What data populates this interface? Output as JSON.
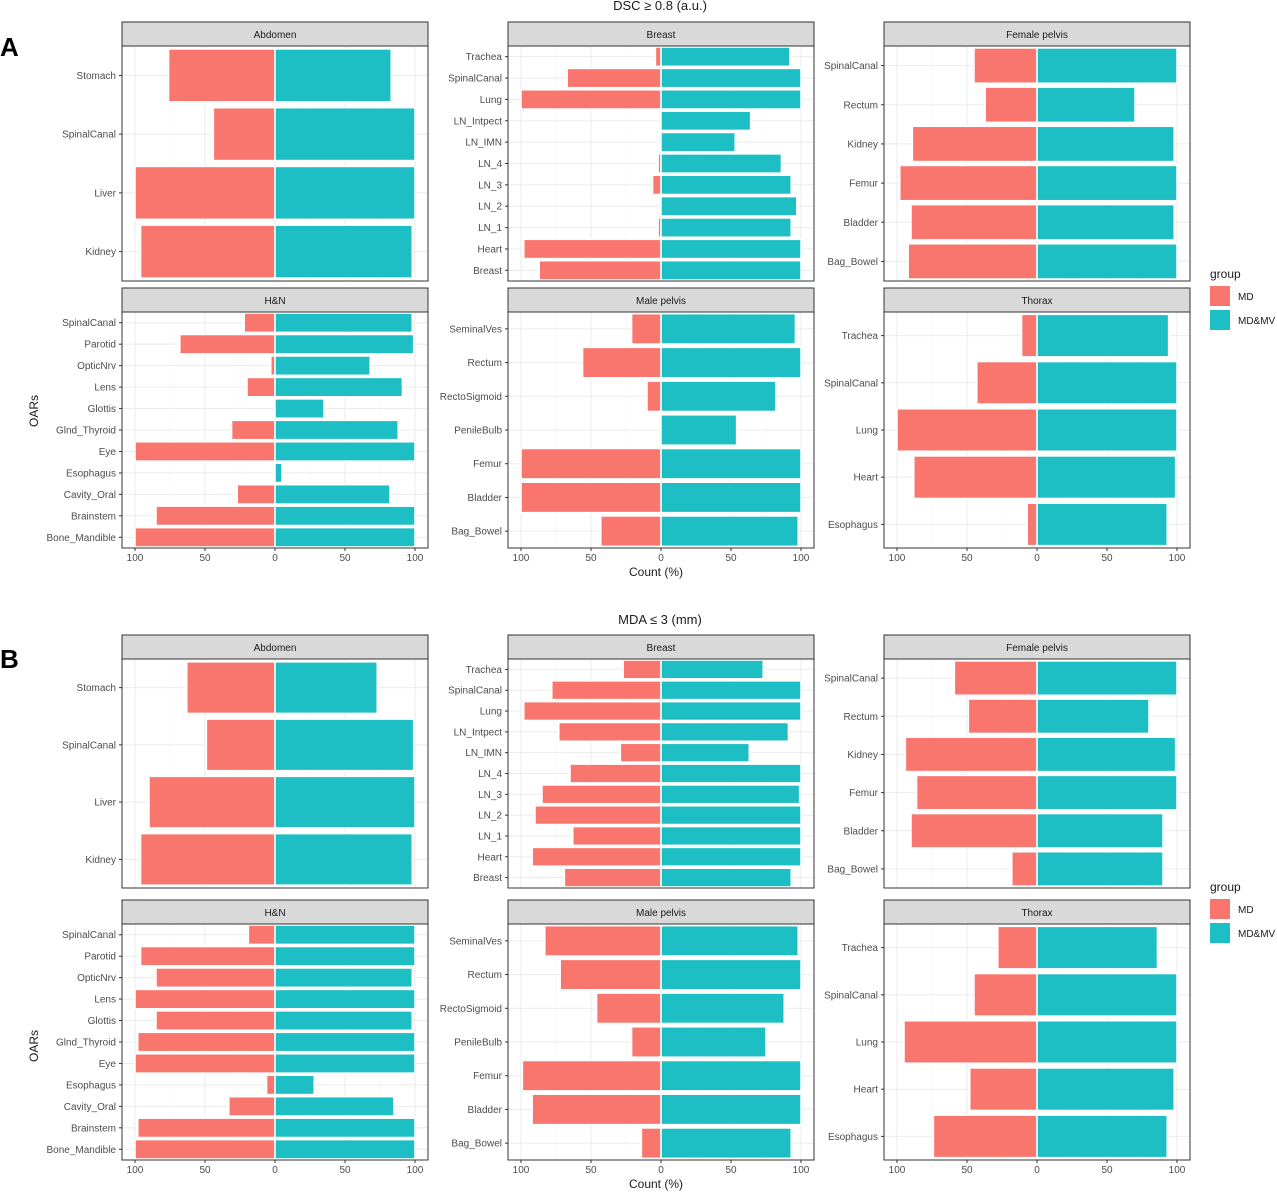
{
  "colors": {
    "MD": "#f8766d",
    "MD&MV": "#1dbfc4",
    "strip_bg": "#d9d9d9",
    "grid": "#ebebeb",
    "frame": "#333333"
  },
  "chart_data": [
    {
      "letter": "A",
      "title": "DSC ≥ 0.8 (a.u.)",
      "type": "bar",
      "orientation": "horizontal-mirrored",
      "xlabel": "Count (%)",
      "ylabel": "OARs",
      "xlim": [
        -100,
        100
      ],
      "xticks": [
        -100,
        -50,
        0,
        50,
        100
      ],
      "xtick_labels": [
        "100",
        "50",
        "0",
        "50",
        "100"
      ],
      "legend": {
        "title": "group",
        "position": "right",
        "entries": [
          "MD",
          "MD&MV"
        ]
      },
      "panels": [
        {
          "name": "Abdomen",
          "categories": [
            "Stomach",
            "SpinalCanal",
            "Liver",
            "Kidney"
          ],
          "series": [
            {
              "name": "MD",
              "values": [
                76,
                44,
                100,
                96
              ]
            },
            {
              "name": "MD&MV",
              "values": [
                83,
                100,
                100,
                98
              ]
            }
          ]
        },
        {
          "name": "Breast",
          "categories": [
            "Trachea",
            "SpinalCanal",
            "Lung",
            "LN_Intpect",
            "LN_IMN",
            "LN_4",
            "LN_3",
            "LN_2",
            "LN_1",
            "Heart",
            "Breast"
          ],
          "series": [
            {
              "name": "MD",
              "values": [
                4,
                67,
                100,
                0,
                0,
                2,
                6,
                1,
                2,
                98,
                87
              ]
            },
            {
              "name": "MD&MV",
              "values": [
                92,
                100,
                100,
                64,
                53,
                86,
                93,
                97,
                93,
                100,
                100
              ]
            }
          ]
        },
        {
          "name": "Female pelvis",
          "categories": [
            "SpinalCanal",
            "Rectum",
            "Kidney",
            "Femur",
            "Bladder",
            "Bag_Bowel"
          ],
          "series": [
            {
              "name": "MD",
              "values": [
                45,
                37,
                89,
                98,
                90,
                92
              ]
            },
            {
              "name": "MD&MV",
              "values": [
                100,
                70,
                98,
                100,
                98,
                100
              ]
            }
          ]
        },
        {
          "name": "H&N",
          "categories": [
            "SpinalCanal",
            "Parotid",
            "OpticNrv",
            "Lens",
            "Glottis",
            "Glnd_Thyroid",
            "Eye",
            "Esophagus",
            "Cavity_Oral",
            "Brainstem",
            "Bone_Mandible"
          ],
          "series": [
            {
              "name": "MD",
              "values": [
                22,
                68,
                3,
                20,
                0,
                31,
                100,
                0,
                27,
                85,
                100
              ]
            },
            {
              "name": "MD&MV",
              "values": [
                98,
                99,
                68,
                91,
                35,
                88,
                100,
                5,
                82,
                100,
                100
              ]
            }
          ]
        },
        {
          "name": "Male pelvis",
          "categories": [
            "SeminalVes",
            "Rectum",
            "RectoSigmoid",
            "PenileBulb",
            "Femur",
            "Bladder",
            "Bag_Bowel"
          ],
          "series": [
            {
              "name": "MD",
              "values": [
                21,
                56,
                10,
                0,
                100,
                100,
                43
              ]
            },
            {
              "name": "MD&MV",
              "values": [
                96,
                100,
                82,
                54,
                100,
                100,
                98
              ]
            }
          ]
        },
        {
          "name": "Thorax",
          "categories": [
            "Trachea",
            "SpinalCanal",
            "Lung",
            "Heart",
            "Esophagus"
          ],
          "series": [
            {
              "name": "MD",
              "values": [
                11,
                43,
                100,
                88,
                7
              ]
            },
            {
              "name": "MD&MV",
              "values": [
                94,
                100,
                100,
                99,
                93
              ]
            }
          ]
        }
      ]
    },
    {
      "letter": "B",
      "title": "MDA ≤ 3 (mm)",
      "type": "bar",
      "orientation": "horizontal-mirrored",
      "xlabel": "Count (%)",
      "ylabel": "OARs",
      "xlim": [
        -100,
        100
      ],
      "xticks": [
        -100,
        -50,
        0,
        50,
        100
      ],
      "xtick_labels": [
        "100",
        "50",
        "0",
        "50",
        "100"
      ],
      "legend": {
        "title": "group",
        "position": "right",
        "entries": [
          "MD",
          "MD&MV"
        ]
      },
      "panels": [
        {
          "name": "Abdomen",
          "categories": [
            "Stomach",
            "SpinalCanal",
            "Liver",
            "Kidney"
          ],
          "series": [
            {
              "name": "MD",
              "values": [
                63,
                49,
                90,
                96
              ]
            },
            {
              "name": "MD&MV",
              "values": [
                73,
                99,
                100,
                98
              ]
            }
          ]
        },
        {
          "name": "Breast",
          "categories": [
            "Trachea",
            "SpinalCanal",
            "Lung",
            "LN_Intpect",
            "LN_IMN",
            "LN_4",
            "LN_3",
            "LN_2",
            "LN_1",
            "Heart",
            "Breast"
          ],
          "series": [
            {
              "name": "MD",
              "values": [
                27,
                78,
                98,
                73,
                29,
                65,
                85,
                90,
                63,
                92,
                69
              ]
            },
            {
              "name": "MD&MV",
              "values": [
                73,
                100,
                100,
                91,
                63,
                100,
                99,
                100,
                100,
                100,
                93
              ]
            }
          ]
        },
        {
          "name": "Female pelvis",
          "categories": [
            "SpinalCanal",
            "Rectum",
            "Kidney",
            "Femur",
            "Bladder",
            "Bag_Bowel"
          ],
          "series": [
            {
              "name": "MD",
              "values": [
                59,
                49,
                94,
                86,
                90,
                18
              ]
            },
            {
              "name": "MD&MV",
              "values": [
                100,
                80,
                99,
                100,
                90,
                90
              ]
            }
          ]
        },
        {
          "name": "H&N",
          "categories": [
            "SpinalCanal",
            "Parotid",
            "OpticNrv",
            "Lens",
            "Glottis",
            "Glnd_Thyroid",
            "Eye",
            "Esophagus",
            "Cavity_Oral",
            "Brainstem",
            "Bone_Mandible"
          ],
          "series": [
            {
              "name": "MD",
              "values": [
                19,
                96,
                85,
                100,
                85,
                98,
                100,
                6,
                33,
                98,
                100
              ]
            },
            {
              "name": "MD&MV",
              "values": [
                100,
                100,
                98,
                100,
                98,
                100,
                100,
                28,
                85,
                100,
                100
              ]
            }
          ]
        },
        {
          "name": "Male pelvis",
          "categories": [
            "SeminalVes",
            "Rectum",
            "RectoSigmoid",
            "PenileBulb",
            "Femur",
            "Bladder",
            "Bag_Bowel"
          ],
          "series": [
            {
              "name": "MD",
              "values": [
                83,
                72,
                46,
                21,
                99,
                92,
                14
              ]
            },
            {
              "name": "MD&MV",
              "values": [
                98,
                100,
                88,
                75,
                100,
                100,
                93
              ]
            }
          ]
        },
        {
          "name": "Thorax",
          "categories": [
            "Trachea",
            "SpinalCanal",
            "Lung",
            "Heart",
            "Esophagus"
          ],
          "series": [
            {
              "name": "MD",
              "values": [
                28,
                45,
                95,
                48,
                74
              ]
            },
            {
              "name": "MD&MV",
              "values": [
                86,
                100,
                100,
                98,
                93
              ]
            }
          ]
        }
      ]
    }
  ]
}
